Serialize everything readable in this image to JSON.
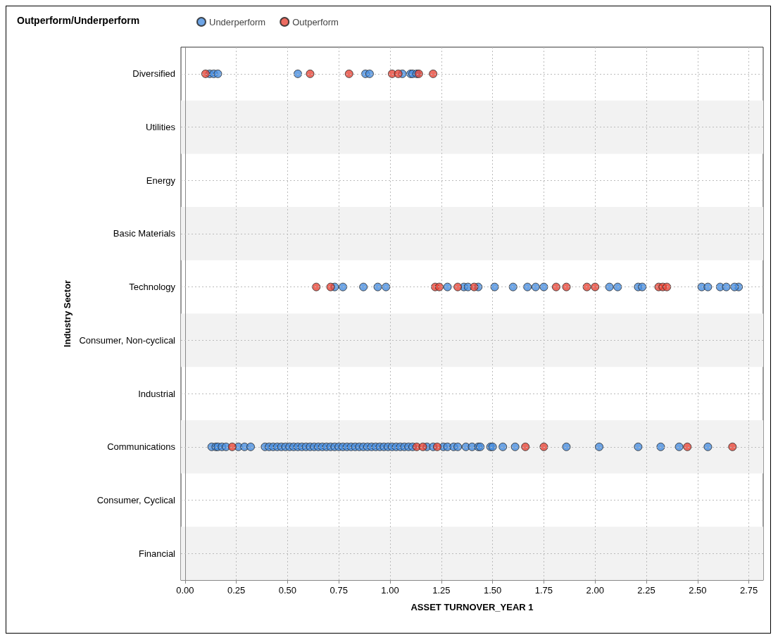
{
  "chart_data": {
    "type": "scatter",
    "orientation": "horizontal",
    "legend_title": "Outperform/Underperform",
    "xlabel": "ASSET TURNOVER_YEAR 1",
    "ylabel": "Industry Sector",
    "categories": [
      "Diversified",
      "Utilities",
      "Energy",
      "Basic Materials",
      "Technology",
      "Consumer, Non-cyclical",
      "Industrial",
      "Communications",
      "Consumer, Cyclical",
      "Financial"
    ],
    "xlim": [
      -0.02,
      2.82
    ],
    "xticks": [
      {
        "value": 0,
        "label": "0.00"
      },
      {
        "value": 0.25,
        "label": "0.25"
      },
      {
        "value": 0.5,
        "label": "0.50"
      },
      {
        "value": 0.75,
        "label": "0.75"
      },
      {
        "value": 1,
        "label": "1.00"
      },
      {
        "value": 1.25,
        "label": "1.25"
      },
      {
        "value": 1.5,
        "label": "1.50"
      },
      {
        "value": 1.75,
        "label": "1.75"
      },
      {
        "value": 2,
        "label": "2.00"
      },
      {
        "value": 2.25,
        "label": "2.25"
      },
      {
        "value": 2.5,
        "label": "2.50"
      },
      {
        "value": 2.75,
        "label": "2.75"
      }
    ],
    "grid": true,
    "legend": "top left",
    "marker": "circle",
    "series": [
      {
        "name": "Underperform",
        "color": "#4a8ee0",
        "x": [
          "Diversified",
          "Diversified",
          "Diversified",
          "Diversified",
          "Diversified",
          "Diversified",
          "Diversified",
          "Diversified",
          "Diversified",
          "Diversified",
          "Technology",
          "Technology",
          "Technology",
          "Technology",
          "Technology",
          "Technology",
          "Technology",
          "Technology",
          "Technology",
          "Technology",
          "Technology",
          "Technology",
          "Technology",
          "Technology",
          "Technology",
          "Technology",
          "Technology",
          "Technology",
          "Technology",
          "Technology",
          "Technology",
          "Technology",
          "Technology",
          "Technology",
          "Communications",
          "Communications",
          "Communications",
          "Communications",
          "Communications",
          "Communications",
          "Communications",
          "Communications",
          "Communications",
          "Communications",
          "Communications",
          "Communications",
          "Communications",
          "Communications",
          "Communications",
          "Communications",
          "Communications",
          "Communications",
          "Communications",
          "Communications",
          "Communications",
          "Communications",
          "Communications",
          "Communications",
          "Communications",
          "Communications",
          "Communications",
          "Communications",
          "Communications",
          "Communications",
          "Communications",
          "Communications",
          "Communications",
          "Communications",
          "Communications",
          "Communications",
          "Communications",
          "Communications",
          "Communications",
          "Communications",
          "Communications",
          "Communications",
          "Communications",
          "Communications",
          "Communications",
          "Communications",
          "Communications",
          "Communications",
          "Communications",
          "Communications",
          "Communications",
          "Communications",
          "Communications",
          "Communications",
          "Communications",
          "Communications",
          "Communications",
          "Communications",
          "Communications",
          "Communications",
          "Communications",
          "Communications",
          "Communications",
          "Communications",
          "Communications"
        ],
        "values": [
          0.12,
          0.14,
          0.16,
          0.55,
          0.88,
          0.9,
          1.06,
          1.1,
          1.11,
          1.13,
          0.73,
          0.77,
          0.87,
          0.94,
          0.98,
          1.28,
          1.36,
          1.38,
          1.43,
          1.51,
          1.6,
          1.67,
          1.71,
          1.75,
          2.07,
          2.11,
          2.21,
          2.23,
          2.52,
          2.55,
          2.61,
          2.64,
          2.7,
          2.68,
          0.13,
          0.15,
          0.16,
          0.18,
          0.2,
          0.26,
          0.29,
          0.32,
          0.39,
          0.41,
          0.43,
          0.45,
          0.47,
          0.49,
          0.51,
          0.53,
          0.55,
          0.57,
          0.59,
          0.61,
          0.63,
          0.65,
          0.67,
          0.69,
          0.71,
          0.73,
          0.75,
          0.77,
          0.79,
          0.81,
          0.83,
          0.85,
          0.87,
          0.89,
          0.91,
          0.93,
          0.95,
          0.97,
          0.99,
          1.01,
          1.03,
          1.05,
          1.07,
          1.09,
          1.11,
          1.18,
          1.21,
          1.26,
          1.28,
          1.31,
          1.33,
          1.37,
          1.4,
          1.43,
          1.44,
          1.49,
          1.5,
          1.55,
          1.61,
          1.86,
          2.02,
          2.21,
          2.32,
          2.41,
          2.55
        ]
      },
      {
        "name": "Outperform",
        "color": "#e8473a",
        "x": [
          "Diversified",
          "Diversified",
          "Diversified",
          "Diversified",
          "Diversified",
          "Diversified",
          "Diversified",
          "Technology",
          "Technology",
          "Technology",
          "Technology",
          "Technology",
          "Technology",
          "Technology",
          "Technology",
          "Technology",
          "Technology",
          "Technology",
          "Technology",
          "Technology",
          "Communications",
          "Communications",
          "Communications",
          "Communications",
          "Communications",
          "Communications",
          "Communications",
          "Communications"
        ],
        "values": [
          0.1,
          0.61,
          0.8,
          1.01,
          1.04,
          1.14,
          1.21,
          0.64,
          0.71,
          1.22,
          1.24,
          1.33,
          1.41,
          1.81,
          1.86,
          1.96,
          2.0,
          2.31,
          2.33,
          2.35,
          0.23,
          1.13,
          1.16,
          1.23,
          1.66,
          1.75,
          2.45,
          2.67
        ]
      }
    ]
  }
}
